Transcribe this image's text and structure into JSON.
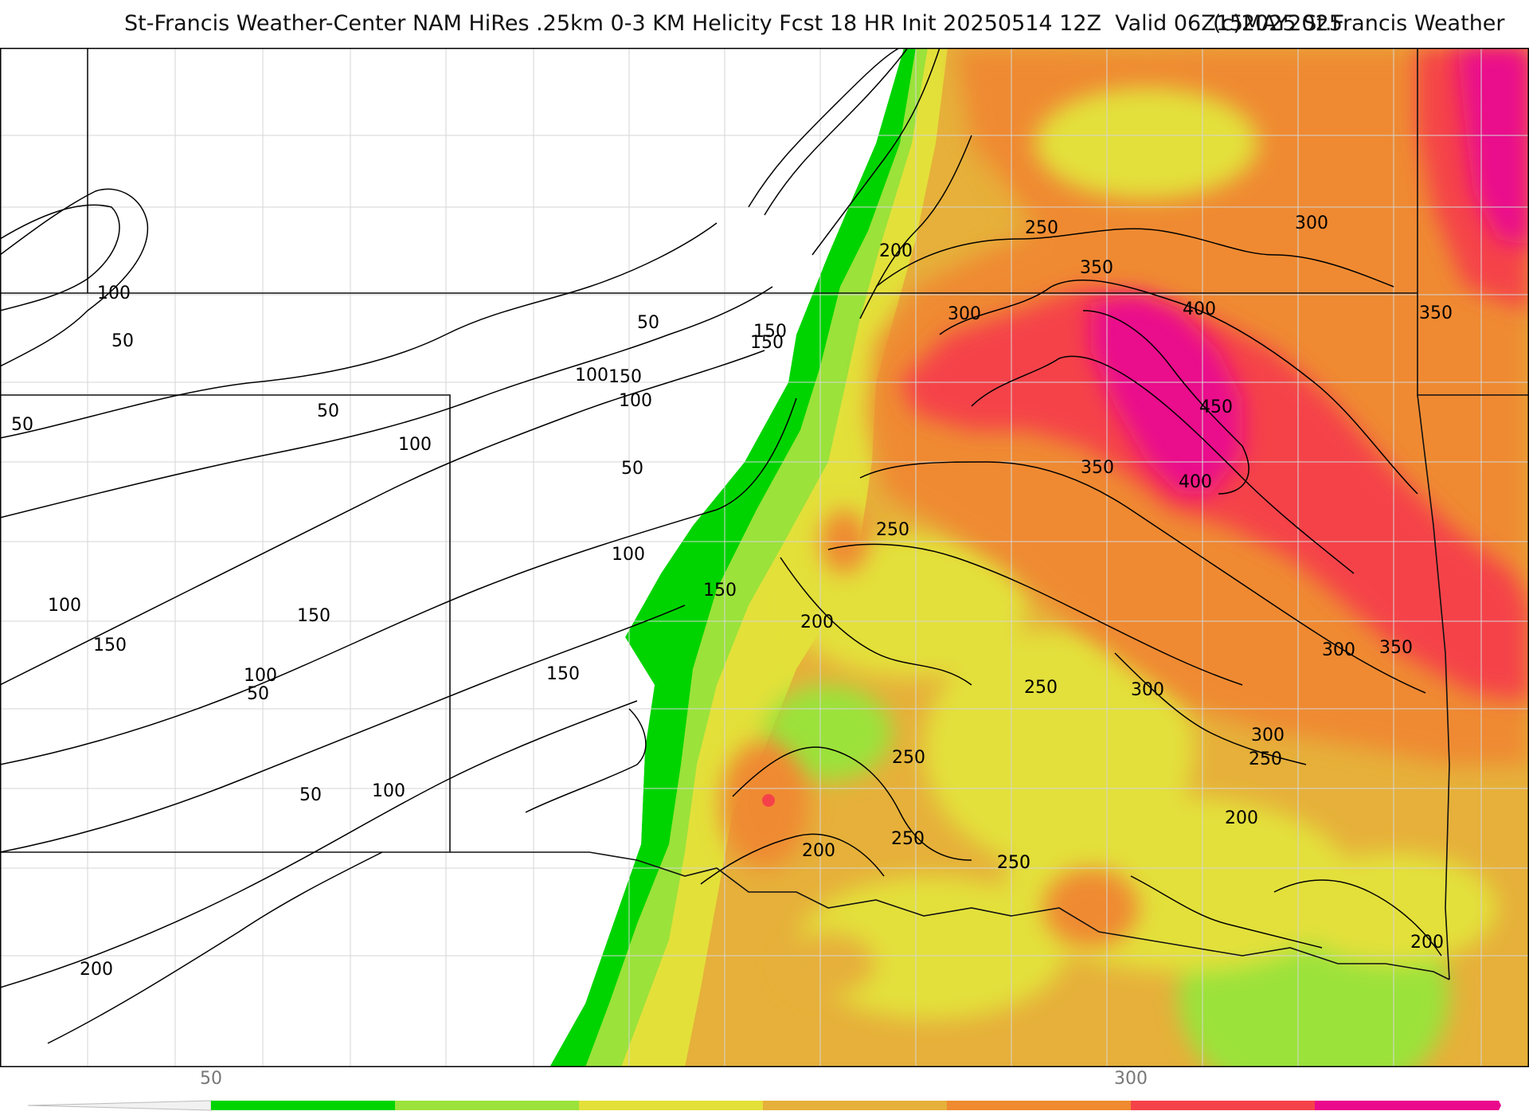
{
  "header": {
    "title": "St-Francis Weather-Center NAM HiRes .25km 0-3 KM Helicity Fcst 18 HR Init 20250514 12Z  Valid 06Z15MAY2025",
    "copyright": "(c)2025 St.Francis Weather"
  },
  "colorbar": {
    "labels": [
      {
        "text": "50",
        "value": 50
      },
      {
        "text": "300",
        "value": 300
      }
    ],
    "bins": [
      {
        "from": 50,
        "to": 100,
        "color": "#00d400"
      },
      {
        "from": 100,
        "to": 150,
        "color": "#9be23a"
      },
      {
        "from": 150,
        "to": 200,
        "color": "#e3e03a"
      },
      {
        "from": 200,
        "to": 250,
        "color": "#e6b03a"
      },
      {
        "from": 250,
        "to": 300,
        "color": "#ef8a30"
      },
      {
        "from": 300,
        "to": 350,
        "color": "#f5424a"
      },
      {
        "from": 350,
        "to": 400,
        "color": "#ea0a8c"
      }
    ]
  },
  "contour_labels": [
    "100",
    "50",
    "50",
    "100",
    "50",
    "150",
    "100",
    "150",
    "100",
    "50",
    "100",
    "150",
    "100",
    "50",
    "150",
    "100",
    "50",
    "100",
    "50",
    "150",
    "200",
    "150",
    "250",
    "200",
    "150",
    "250",
    "200",
    "250",
    "300",
    "350",
    "300",
    "400",
    "350",
    "450",
    "350",
    "400",
    "250",
    "200",
    "250",
    "300",
    "300",
    "350",
    "300",
    "250",
    "250",
    "250",
    "200",
    "200"
  ]
}
